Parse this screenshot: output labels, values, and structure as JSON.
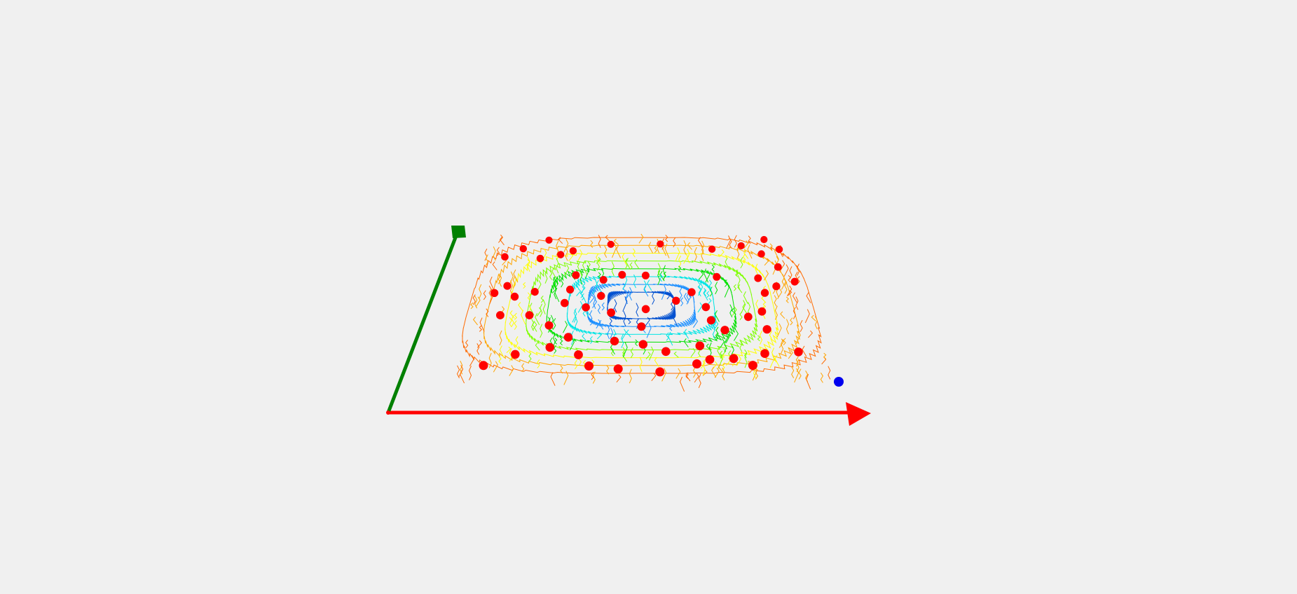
{
  "scene": {
    "background": "#f0f0f0",
    "axes": {
      "x_color": "#ff0000",
      "y_color": "#008000"
    },
    "contour_colors": [
      "#ff6a00",
      "#ffa500",
      "#ffff00",
      "#7fff00",
      "#00e000",
      "#00e5e5",
      "#1e90ff",
      "#0050d0"
    ],
    "scatter_color": "#ff0000",
    "marker_color": "#0000ee",
    "scatter_count": 63
  }
}
